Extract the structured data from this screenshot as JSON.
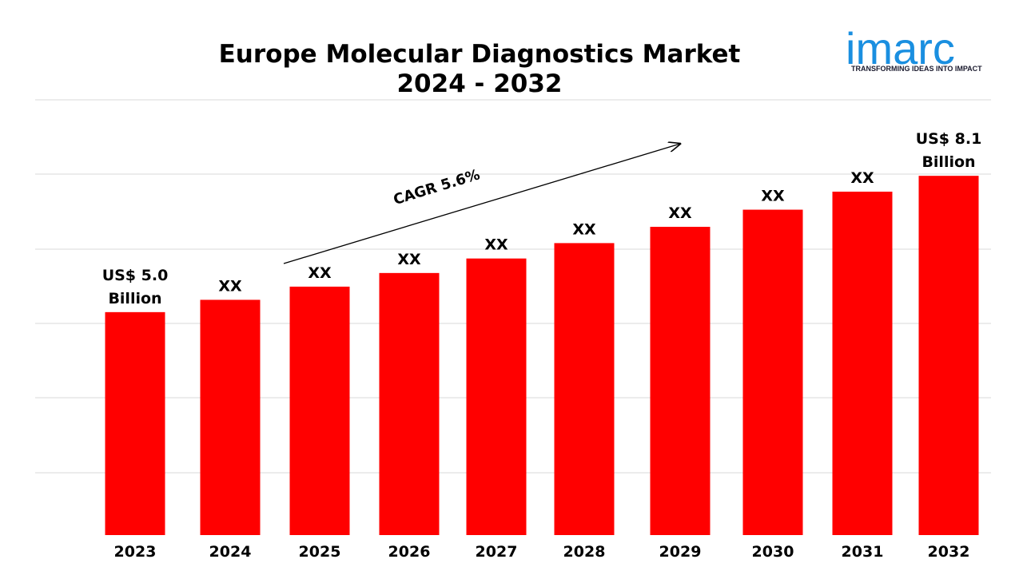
{
  "logo": {
    "text": "imarc",
    "tagline": "TRANSFORMING IDEAS INTO IMPACT",
    "color": "#1a8fe0"
  },
  "chart_data": {
    "type": "bar",
    "title": [
      "Europe Molecular Diagnostics Market",
      "2024 - 2032"
    ],
    "categories": [
      "2023",
      "2024",
      "2025",
      "2026",
      "2027",
      "2028",
      "2029",
      "2030",
      "2031",
      "2032"
    ],
    "values": [
      5.0,
      5.28,
      5.58,
      5.89,
      6.22,
      6.57,
      6.94,
      7.33,
      7.74,
      8.1
    ],
    "data_labels": [
      [
        "US$ 5.0",
        "Billion"
      ],
      [
        "XX"
      ],
      [
        "XX"
      ],
      [
        "XX"
      ],
      [
        "XX"
      ],
      [
        "XX"
      ],
      [
        "XX"
      ],
      [
        "XX"
      ],
      [
        "XX"
      ],
      [
        "US$ 8.1",
        "Billion"
      ]
    ],
    "annotation": "CAGR 5.6%",
    "bar_color": "#ff0000",
    "grid": true,
    "legend": "none"
  }
}
